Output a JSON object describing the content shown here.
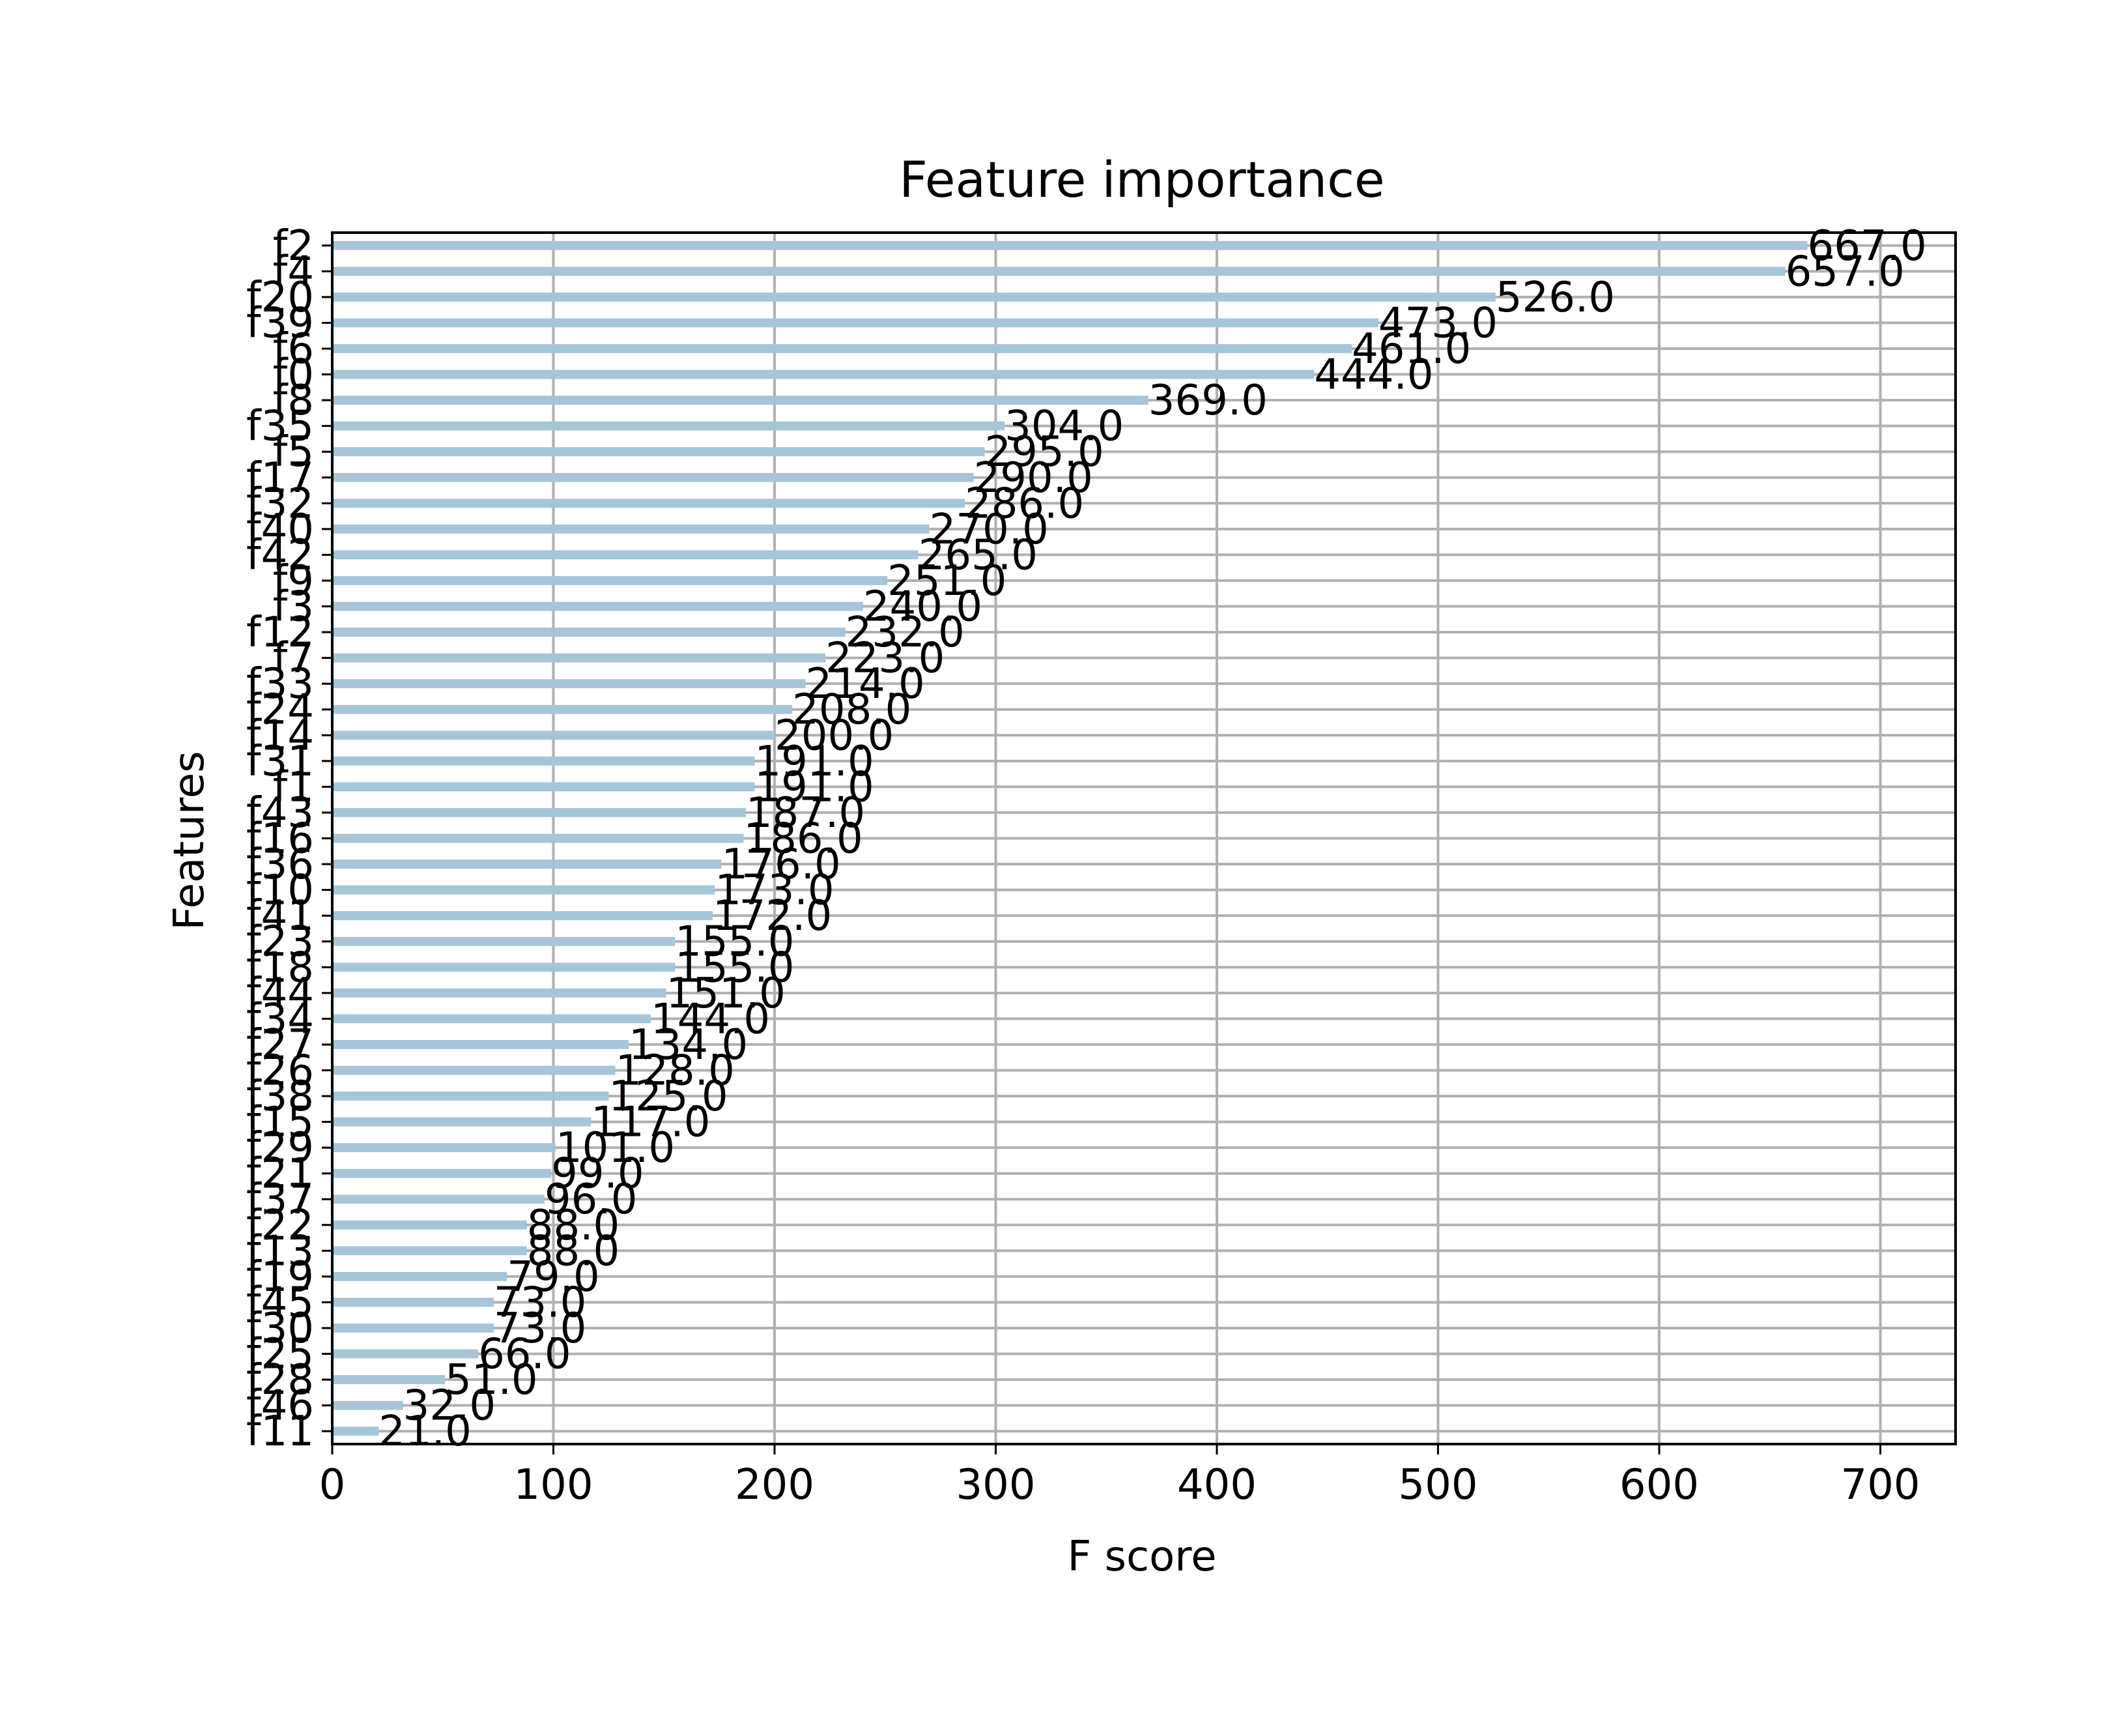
{
  "chart_data": {
    "type": "bar",
    "orientation": "horizontal",
    "title": "Feature importance",
    "xlabel": "F score",
    "ylabel": "Features",
    "xlim": [
      0,
      734
    ],
    "xticks": [
      0,
      100,
      200,
      300,
      400,
      500,
      600,
      700
    ],
    "grid": true,
    "bar_color": "#a6c5d9",
    "categories": [
      "f11",
      "f46",
      "f28",
      "f25",
      "f30",
      "f45",
      "f19",
      "f13",
      "f22",
      "f37",
      "f21",
      "f29",
      "f15",
      "f38",
      "f26",
      "f27",
      "f34",
      "f44",
      "f18",
      "f23",
      "f41",
      "f10",
      "f36",
      "f16",
      "f43",
      "f1",
      "f31",
      "f14",
      "f24",
      "f33",
      "f7",
      "f12",
      "f3",
      "f9",
      "f42",
      "f40",
      "f32",
      "f17",
      "f5",
      "f35",
      "f8",
      "f0",
      "f6",
      "f39",
      "f20",
      "f4",
      "f2"
    ],
    "values": [
      21,
      32,
      51,
      66,
      73,
      73,
      79,
      88,
      88,
      96,
      99,
      101,
      117,
      125,
      128,
      134,
      144,
      151,
      155,
      155,
      172,
      173,
      176,
      186,
      187,
      191,
      191,
      200,
      208,
      214,
      223,
      232,
      240,
      251,
      265,
      270,
      286,
      290,
      295,
      304,
      369,
      444,
      461,
      473,
      526,
      657,
      667
    ],
    "value_labels": [
      "21.0",
      "32.0",
      "51.0",
      "66.0",
      "73.0",
      "73.0",
      "79.0",
      "88.0",
      "88.0",
      "96.0",
      "99.0",
      "101.0",
      "117.0",
      "125.0",
      "128.0",
      "134.0",
      "144.0",
      "151.0",
      "155.0",
      "155.0",
      "172.0",
      "173.0",
      "176.0",
      "186.0",
      "187.0",
      "191.0",
      "191.0",
      "200.0",
      "208.0",
      "214.0",
      "223.0",
      "232.0",
      "240.0",
      "251.0",
      "265.0",
      "270.0",
      "286.0",
      "290.0",
      "295.0",
      "304.0",
      "369.0",
      "444.0",
      "461.0",
      "473.0",
      "526.0",
      "657.0",
      "667.0"
    ]
  }
}
